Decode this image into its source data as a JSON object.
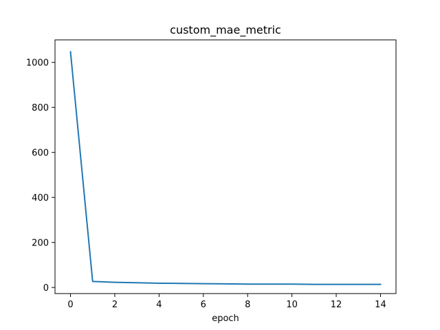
{
  "chart_data": {
    "type": "line",
    "title": "custom_mae_metric",
    "xlabel": "epoch",
    "ylabel": "",
    "xlim": [
      -0.7,
      14.7
    ],
    "ylim": [
      -27,
      1100
    ],
    "xticks": [
      0,
      2,
      4,
      6,
      8,
      10,
      12,
      14
    ],
    "yticks": [
      0,
      200,
      400,
      600,
      800,
      1000
    ],
    "grid": false,
    "series": [
      {
        "color": "#1f77b4",
        "x": [
          0,
          1,
          2,
          3,
          4,
          5,
          6,
          7,
          8,
          9,
          10,
          11,
          12,
          13,
          14
        ],
        "y": [
          1047,
          27,
          23,
          21,
          19,
          18,
          17,
          16,
          15,
          15,
          15,
          14,
          14,
          14,
          14
        ]
      }
    ]
  }
}
